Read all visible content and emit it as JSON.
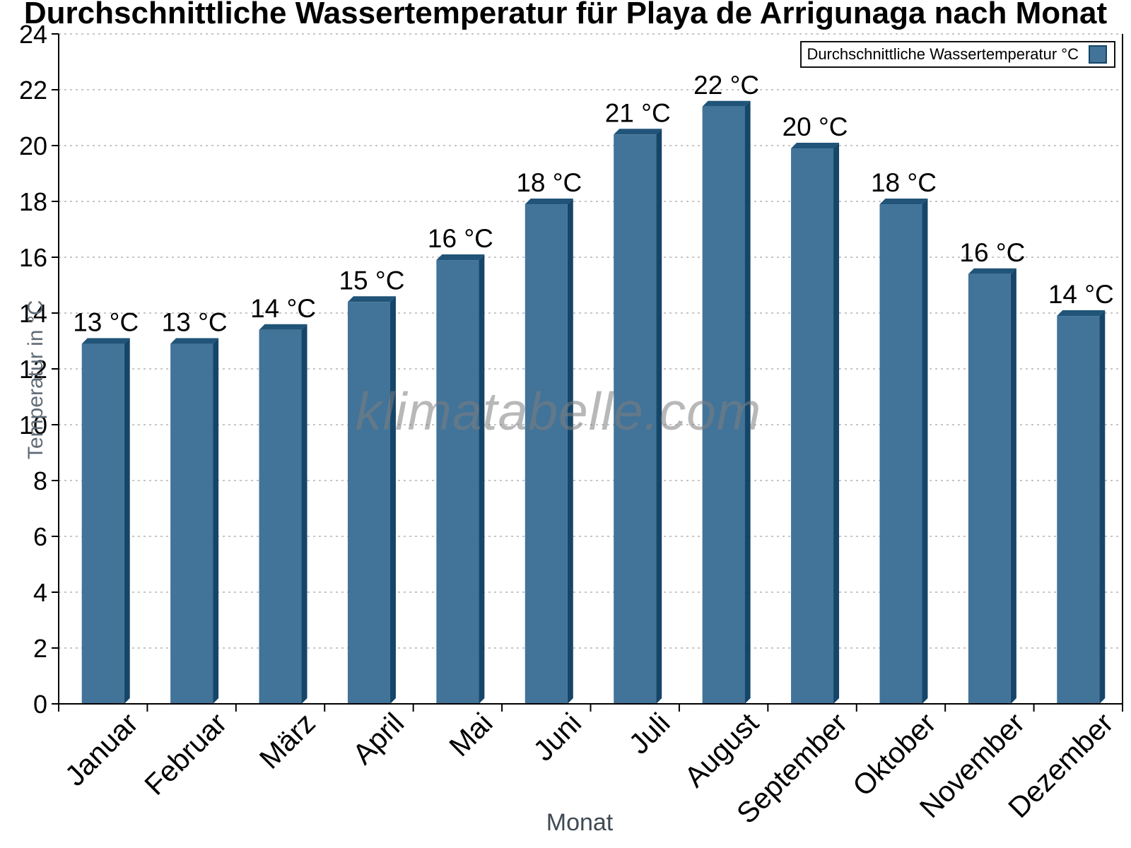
{
  "watermark": "klimatabelle.com",
  "chart_data": {
    "type": "bar",
    "title": "Durchschnittliche Wassertemperatur für Playa de Arrigunaga nach Monat",
    "xlabel": "Monat",
    "ylabel": "Temperatur in °C",
    "ylim": [
      0,
      24
    ],
    "ytick_step": 2,
    "grid": "horizontal-dotted",
    "legend_position": "top-right-inside",
    "categories": [
      "Januar",
      "Februar",
      "März",
      "April",
      "Mai",
      "Juni",
      "Juli",
      "August",
      "September",
      "Oktober",
      "November",
      "Dezember"
    ],
    "series": [
      {
        "name": "Durchschnittliche Wassertemperatur °C",
        "values": [
          13,
          13,
          14,
          15,
          16,
          18,
          21,
          22,
          20,
          18,
          16,
          14
        ],
        "value_labels": [
          "13 °C",
          "13 °C",
          "14 °C",
          "15 °C",
          "16 °C",
          "18 °C",
          "21 °C",
          "22 °C",
          "20 °C",
          "18 °C",
          "16 °C",
          "14 °C"
        ],
        "bar_tops_drawn": [
          13.1,
          13.1,
          13.6,
          14.6,
          16.1,
          18.1,
          20.6,
          21.6,
          20.1,
          18.1,
          15.6,
          14.1
        ]
      }
    ],
    "colors": {
      "bar_face": "#427399",
      "bar_bevel_top": "#205478",
      "bar_side": "#154669",
      "grid": "#C6C6C6",
      "axis": "#000000",
      "tick_label": "#000000",
      "y_axis_title": "#5F6B76",
      "x_axis_title": "#3F4A54"
    }
  }
}
